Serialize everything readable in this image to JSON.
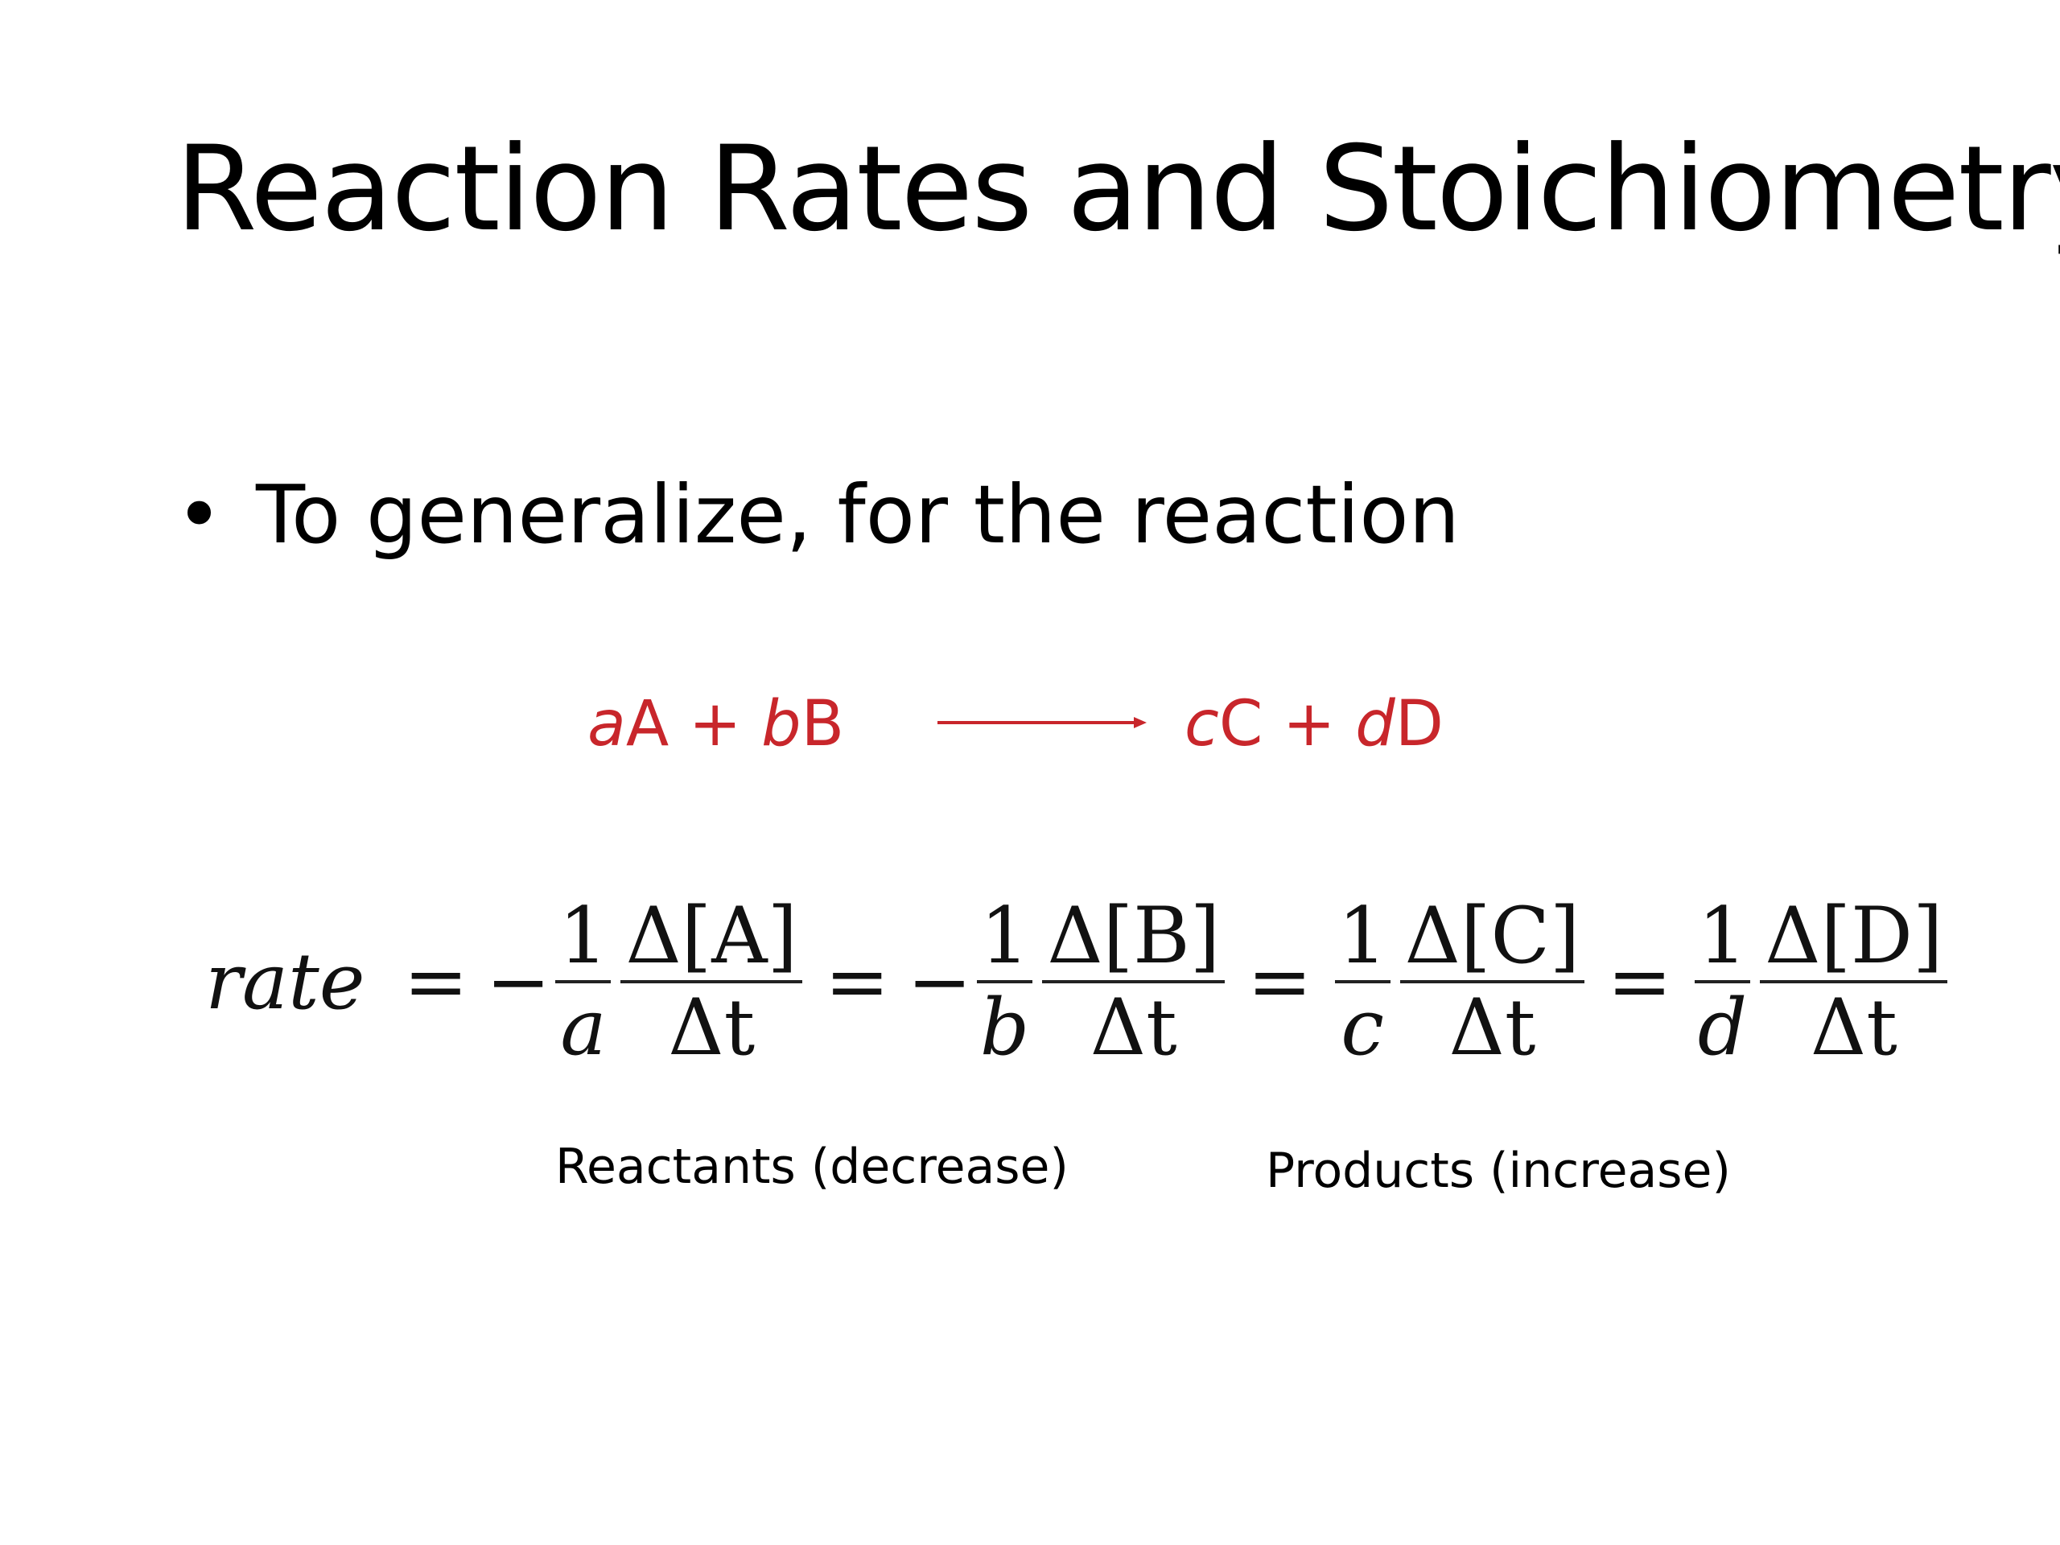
{
  "slide": {
    "title": "Reaction Rates and Stoichiometry",
    "bullet": "To generalize, for the reaction",
    "reaction": {
      "reactant_a_coef": "a",
      "reactant_a": "A + ",
      "reactant_b_coef": "b",
      "reactant_b": "B",
      "product_c_coef": "c",
      "product_c": "C + ",
      "product_d_coef": "d",
      "product_d": "D",
      "color": "#c8262b"
    },
    "equation": {
      "lhs": "rate",
      "eq": "=",
      "minus": "−",
      "one": "1",
      "delta_t": "Δt",
      "terms": [
        {
          "coef": "a",
          "conc": "Δ[A]"
        },
        {
          "coef": "b",
          "conc": "Δ[B]"
        },
        {
          "coef": "c",
          "conc": "Δ[C]"
        },
        {
          "coef": "d",
          "conc": "Δ[D]"
        }
      ]
    },
    "labels": {
      "reactants": "Reactants (decrease)",
      "products": "Products (increase)"
    }
  }
}
